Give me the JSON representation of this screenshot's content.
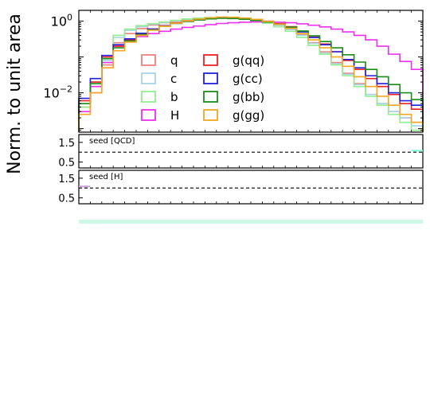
{
  "chart_data": [
    {
      "panel": "main",
      "type": "histogram-step",
      "ylabel": "Norm. to unit area",
      "yscale": "log",
      "ylim": [
        0.0008,
        2.0
      ],
      "x_bins": 30,
      "ytick_labels": [
        "10^0",
        "10^-2"
      ],
      "legend": {
        "placement": "center",
        "columns": 2
      },
      "series": [
        {
          "name": "q",
          "color": "#f08080",
          "values": [
            0.004,
            0.01,
            0.06,
            0.25,
            0.45,
            0.62,
            0.78,
            0.9,
            1.0,
            1.1,
            1.2,
            1.25,
            1.28,
            1.25,
            1.2,
            1.12,
            1.0,
            0.82,
            0.62,
            0.42,
            0.25,
            0.14,
            0.07,
            0.035,
            0.018,
            0.009,
            0.005,
            0.003,
            0.002,
            0.0015
          ]
        },
        {
          "name": "c",
          "color": "#a8d4e6",
          "values": [
            0.005,
            0.02,
            0.08,
            0.35,
            0.55,
            0.7,
            0.82,
            0.92,
            1.02,
            1.12,
            1.2,
            1.25,
            1.26,
            1.24,
            1.18,
            1.08,
            0.95,
            0.78,
            0.58,
            0.4,
            0.24,
            0.13,
            0.065,
            0.033,
            0.017,
            0.009,
            0.005,
            0.003,
            0.002,
            0.0012
          ]
        },
        {
          "name": "b",
          "color": "#90ee90",
          "values": [
            0.004,
            0.015,
            0.09,
            0.4,
            0.6,
            0.75,
            0.85,
            0.95,
            1.05,
            1.15,
            1.22,
            1.26,
            1.27,
            1.24,
            1.15,
            1.02,
            0.88,
            0.7,
            0.52,
            0.35,
            0.21,
            0.12,
            0.06,
            0.03,
            0.015,
            0.008,
            0.0045,
            0.0025,
            0.0015,
            0.0009
          ]
        },
        {
          "name": "H",
          "color": "#ee30ee",
          "values": [
            0.003,
            0.015,
            0.07,
            0.2,
            0.3,
            0.37,
            0.45,
            0.52,
            0.6,
            0.67,
            0.73,
            0.8,
            0.86,
            0.9,
            0.93,
            0.95,
            0.95,
            0.93,
            0.9,
            0.84,
            0.77,
            0.69,
            0.6,
            0.5,
            0.4,
            0.3,
            0.2,
            0.12,
            0.075,
            0.045
          ]
        },
        {
          "name": "g(qq)",
          "color": "#ee2020",
          "values": [
            0.006,
            0.02,
            0.1,
            0.2,
            0.3,
            0.45,
            0.6,
            0.75,
            0.9,
            1.02,
            1.12,
            1.2,
            1.24,
            1.22,
            1.18,
            1.1,
            0.98,
            0.85,
            0.7,
            0.52,
            0.36,
            0.23,
            0.14,
            0.08,
            0.045,
            0.025,
            0.015,
            0.009,
            0.005,
            0.0035
          ]
        },
        {
          "name": "g(cc)",
          "color": "#2020dd",
          "values": [
            0.007,
            0.025,
            0.11,
            0.22,
            0.32,
            0.46,
            0.6,
            0.74,
            0.88,
            1.0,
            1.1,
            1.18,
            1.22,
            1.2,
            1.15,
            1.06,
            0.95,
            0.82,
            0.67,
            0.5,
            0.35,
            0.22,
            0.14,
            0.085,
            0.05,
            0.03,
            0.018,
            0.01,
            0.006,
            0.0045
          ]
        },
        {
          "name": "g(bb)",
          "color": "#1a8c1a",
          "values": [
            0.005,
            0.018,
            0.09,
            0.18,
            0.28,
            0.42,
            0.57,
            0.72,
            0.86,
            0.98,
            1.08,
            1.16,
            1.2,
            1.18,
            1.13,
            1.05,
            0.94,
            0.82,
            0.68,
            0.53,
            0.39,
            0.27,
            0.18,
            0.115,
            0.072,
            0.045,
            0.028,
            0.017,
            0.01,
            0.0065
          ]
        },
        {
          "name": "g(gg)",
          "color": "#f5a623",
          "values": [
            0.0025,
            0.01,
            0.05,
            0.15,
            0.26,
            0.4,
            0.56,
            0.72,
            0.88,
            1.02,
            1.14,
            1.24,
            1.3,
            1.28,
            1.22,
            1.12,
            0.98,
            0.82,
            0.63,
            0.45,
            0.3,
            0.18,
            0.1,
            0.055,
            0.028,
            0.015,
            0.008,
            0.0045,
            0.0025,
            0.0015
          ]
        }
      ]
    },
    {
      "panel": "ratio-1",
      "type": "ratio",
      "label": "seed [QCD]",
      "ylim": [
        0.2,
        1.9
      ],
      "ytick_labels": [
        "1.5",
        "0.5"
      ],
      "reference_line": 1.0
    },
    {
      "panel": "ratio-2",
      "type": "ratio",
      "label": "seed [H]",
      "ylim": [
        0.2,
        1.9
      ],
      "ytick_labels": [
        "1.5",
        "0.5"
      ],
      "reference_line": 1.0
    }
  ]
}
